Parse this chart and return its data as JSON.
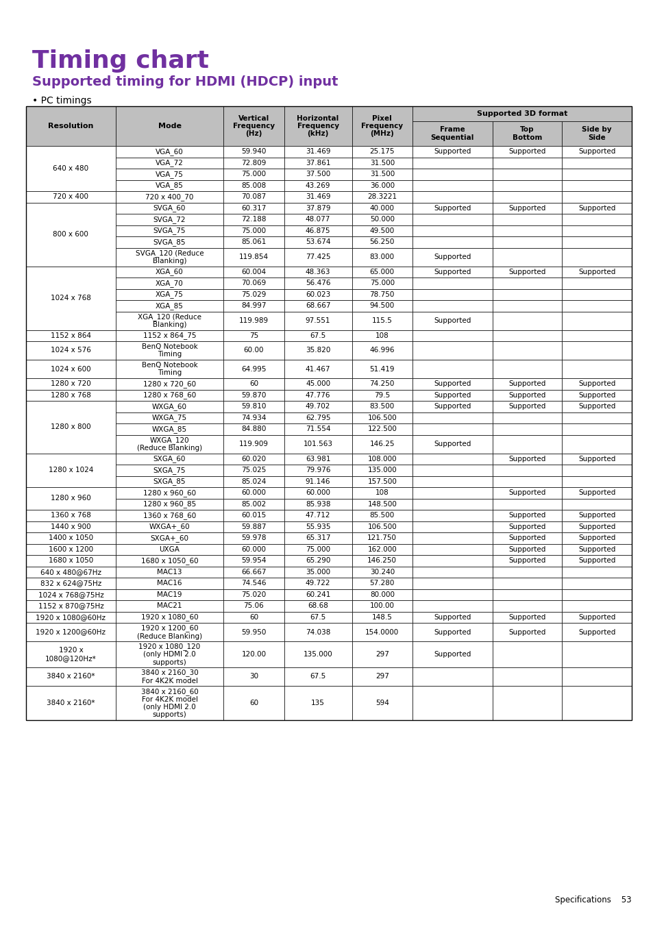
{
  "title": "Timing chart",
  "subtitle": "Supported timing for HDMI (HDCP) input",
  "section": "• PC timings",
  "title_color": "#7030A0",
  "subtitle_color": "#7030A0",
  "header_bg": "#BFBFBF",
  "footer_text": "Specifications    53",
  "rows": [
    [
      "640 x 480",
      "VGA_60",
      "59.940",
      "31.469",
      "25.175",
      "Supported",
      "Supported",
      "Supported"
    ],
    [
      "",
      "VGA_72",
      "72.809",
      "37.861",
      "31.500",
      "",
      "",
      ""
    ],
    [
      "",
      "VGA_75",
      "75.000",
      "37.500",
      "31.500",
      "",
      "",
      ""
    ],
    [
      "",
      "VGA_85",
      "85.008",
      "43.269",
      "36.000",
      "",
      "",
      ""
    ],
    [
      "720 x 400",
      "720 x 400_70",
      "70.087",
      "31.469",
      "28.3221",
      "",
      "",
      ""
    ],
    [
      "800 x 600",
      "SVGA_60",
      "60.317",
      "37.879",
      "40.000",
      "Supported",
      "Supported",
      "Supported"
    ],
    [
      "",
      "SVGA_72",
      "72.188",
      "48.077",
      "50.000",
      "",
      "",
      ""
    ],
    [
      "",
      "SVGA_75",
      "75.000",
      "46.875",
      "49.500",
      "",
      "",
      ""
    ],
    [
      "",
      "SVGA_85",
      "85.061",
      "53.674",
      "56.250",
      "",
      "",
      ""
    ],
    [
      "",
      "SVGA_120 (Reduce\nBlanking)",
      "119.854",
      "77.425",
      "83.000",
      "Supported",
      "",
      ""
    ],
    [
      "1024 x 768",
      "XGA_60",
      "60.004",
      "48.363",
      "65.000",
      "Supported",
      "Supported",
      "Supported"
    ],
    [
      "",
      "XGA_70",
      "70.069",
      "56.476",
      "75.000",
      "",
      "",
      ""
    ],
    [
      "",
      "XGA_75",
      "75.029",
      "60.023",
      "78.750",
      "",
      "",
      ""
    ],
    [
      "",
      "XGA_85",
      "84.997",
      "68.667",
      "94.500",
      "",
      "",
      ""
    ],
    [
      "",
      "XGA_120 (Reduce\nBlanking)",
      "119.989",
      "97.551",
      "115.5",
      "Supported",
      "",
      ""
    ],
    [
      "1152 x 864",
      "1152 x 864_75",
      "75",
      "67.5",
      "108",
      "",
      "",
      ""
    ],
    [
      "1024 x 576",
      "BenQ Notebook\nTiming",
      "60.00",
      "35.820",
      "46.996",
      "",
      "",
      ""
    ],
    [
      "1024 x 600",
      "BenQ Notebook\nTiming",
      "64.995",
      "41.467",
      "51.419",
      "",
      "",
      ""
    ],
    [
      "1280 x 720",
      "1280 x 720_60",
      "60",
      "45.000",
      "74.250",
      "Supported",
      "Supported",
      "Supported"
    ],
    [
      "1280 x 768",
      "1280 x 768_60",
      "59.870",
      "47.776",
      "79.5",
      "Supported",
      "Supported",
      "Supported"
    ],
    [
      "1280 x 800",
      "WXGA_60",
      "59.810",
      "49.702",
      "83.500",
      "Supported",
      "Supported",
      "Supported"
    ],
    [
      "",
      "WXGA_75",
      "74.934",
      "62.795",
      "106.500",
      "",
      "",
      ""
    ],
    [
      "",
      "WXGA_85",
      "84.880",
      "71.554",
      "122.500",
      "",
      "",
      ""
    ],
    [
      "",
      "WXGA_120\n(Reduce Blanking)",
      "119.909",
      "101.563",
      "146.25",
      "Supported",
      "",
      ""
    ],
    [
      "1280 x 1024",
      "SXGA_60",
      "60.020",
      "63.981",
      "108.000",
      "",
      "Supported",
      "Supported"
    ],
    [
      "",
      "SXGA_75",
      "75.025",
      "79.976",
      "135.000",
      "",
      "",
      ""
    ],
    [
      "",
      "SXGA_85",
      "85.024",
      "91.146",
      "157.500",
      "",
      "",
      ""
    ],
    [
      "1280 x 960",
      "1280 x 960_60",
      "60.000",
      "60.000",
      "108",
      "",
      "Supported",
      "Supported"
    ],
    [
      "",
      "1280 x 960_85",
      "85.002",
      "85.938",
      "148.500",
      "",
      "",
      ""
    ],
    [
      "1360 x 768",
      "1360 x 768_60",
      "60.015",
      "47.712",
      "85.500",
      "",
      "Supported",
      "Supported"
    ],
    [
      "1440 x 900",
      "WXGA+_60",
      "59.887",
      "55.935",
      "106.500",
      "",
      "Supported",
      "Supported"
    ],
    [
      "1400 x 1050",
      "SXGA+_60",
      "59.978",
      "65.317",
      "121.750",
      "",
      "Supported",
      "Supported"
    ],
    [
      "1600 x 1200",
      "UXGA",
      "60.000",
      "75.000",
      "162.000",
      "",
      "Supported",
      "Supported"
    ],
    [
      "1680 x 1050",
      "1680 x 1050_60",
      "59.954",
      "65.290",
      "146.250",
      "",
      "Supported",
      "Supported"
    ],
    [
      "640 x 480@67Hz",
      "MAC13",
      "66.667",
      "35.000",
      "30.240",
      "",
      "",
      ""
    ],
    [
      "832 x 624@75Hz",
      "MAC16",
      "74.546",
      "49.722",
      "57.280",
      "",
      "",
      ""
    ],
    [
      "1024 x 768@75Hz",
      "MAC19",
      "75.020",
      "60.241",
      "80.000",
      "",
      "",
      ""
    ],
    [
      "1152 x 870@75Hz",
      "MAC21",
      "75.06",
      "68.68",
      "100.00",
      "",
      "",
      ""
    ],
    [
      "1920 x 1080@60Hz",
      "1920 x 1080_60",
      "60",
      "67.5",
      "148.5",
      "Supported",
      "Supported",
      "Supported"
    ],
    [
      "1920 x 1200@60Hz",
      "1920 x 1200_60\n(Reduce Blanking)",
      "59.950",
      "74.038",
      "154.0000",
      "Supported",
      "Supported",
      "Supported"
    ],
    [
      "1920 x\n1080@120Hz*",
      "1920 x 1080_120\n(only HDMI 2.0\nsupports)",
      "120.00",
      "135.000",
      "297",
      "Supported",
      "",
      ""
    ],
    [
      "3840 x 2160*",
      "3840 x 2160_30\nFor 4K2K model",
      "30",
      "67.5",
      "297",
      "",
      "",
      ""
    ],
    [
      "3840 x 2160*",
      "3840 x 2160_60\nFor 4K2K model\n(only HDMI 2.0\nsupports)",
      "60",
      "135",
      "594",
      "",
      "",
      ""
    ]
  ]
}
